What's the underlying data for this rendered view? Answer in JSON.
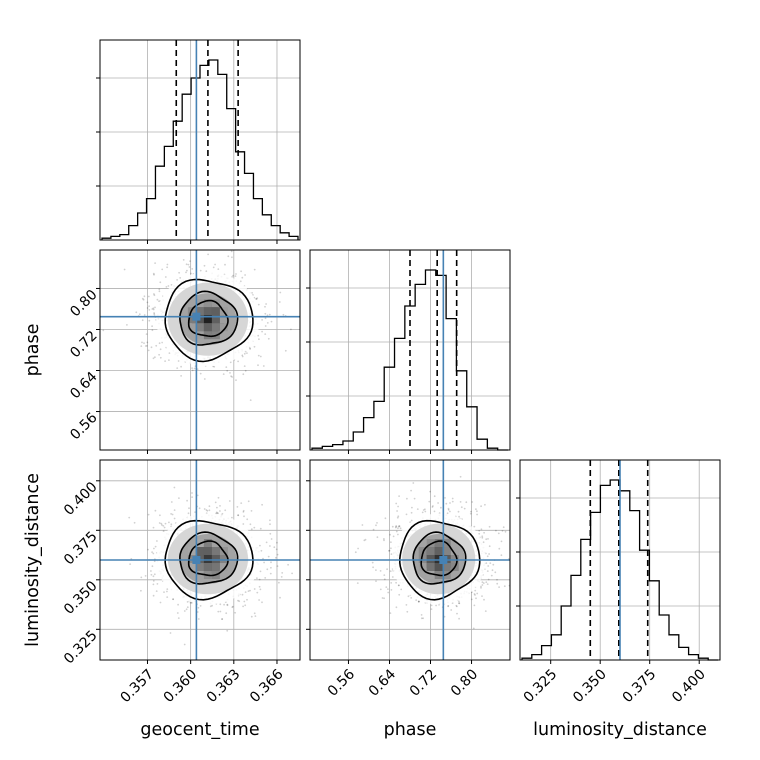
{
  "chart_data": {
    "type": "corner",
    "parameters": [
      "geocent_time",
      "phase",
      "luminosity_distance"
    ],
    "ranges": [
      [
        0.3537,
        0.3676
      ],
      [
        0.485,
        0.875
      ],
      [
        0.3095,
        0.4105
      ]
    ],
    "ticks": [
      [
        0.357,
        0.36,
        0.363,
        0.366
      ],
      [
        0.56,
        0.64,
        0.72,
        0.8
      ],
      [
        0.325,
        0.35,
        0.375,
        0.4
      ]
    ],
    "tick_labels": [
      [
        "0.357",
        "0.360",
        "0.363",
        "0.366"
      ],
      [
        "0.56",
        "0.64",
        "0.72",
        "0.80"
      ],
      [
        "0.325",
        "0.350",
        "0.375",
        "0.400"
      ]
    ],
    "truths": [
      0.3604,
      0.745,
      0.36
    ],
    "truth_color": "#4682b4",
    "quantile_lines": [
      [
        0.359,
        0.3612,
        0.3633
      ],
      [
        0.68,
        0.733,
        0.771
      ],
      [
        0.345,
        0.3594,
        0.374
      ]
    ],
    "histograms": [
      [
        0.01,
        0.02,
        0.03,
        0.08,
        0.15,
        0.23,
        0.41,
        0.52,
        0.66,
        0.81,
        0.9,
        0.97,
        1.0,
        0.92,
        0.73,
        0.49,
        0.37,
        0.23,
        0.14,
        0.08,
        0.04,
        0.02
      ],
      [
        0.01,
        0.02,
        0.03,
        0.05,
        0.1,
        0.18,
        0.27,
        0.46,
        0.62,
        0.8,
        0.92,
        1.0,
        0.97,
        0.73,
        0.44,
        0.24,
        0.06,
        0.01,
        0.0
      ],
      [
        0.01,
        0.03,
        0.08,
        0.14,
        0.3,
        0.47,
        0.67,
        0.82,
        0.97,
        1.0,
        0.94,
        0.83,
        0.61,
        0.44,
        0.25,
        0.14,
        0.07,
        0.03,
        0.01,
        0.0
      ]
    ],
    "pairs": [
      {
        "x": 0,
        "y": 1,
        "mean": [
          0.3612,
          0.74
        ],
        "sd": [
          0.0018,
          0.046
        ]
      },
      {
        "x": 0,
        "y": 2,
        "mean": [
          0.3612,
          0.3605
        ],
        "sd": [
          0.0018,
          0.0115
        ]
      },
      {
        "x": 1,
        "y": 2,
        "mean": [
          0.736,
          0.3605
        ],
        "sd": [
          0.046,
          0.0115
        ]
      }
    ],
    "contour_levels": [
      0.39,
      0.86,
      1.99
    ],
    "grid": true,
    "colors": {
      "hist": "#000000",
      "truth": "#4682b4",
      "grid": "#b0b0b0",
      "contour": "#000000",
      "points": "#000000"
    }
  }
}
